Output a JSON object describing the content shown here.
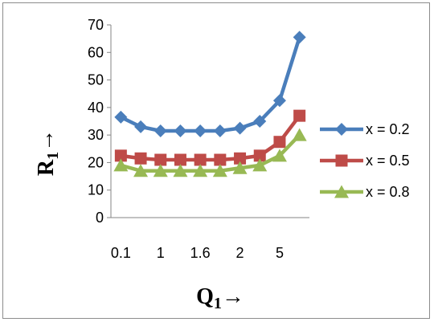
{
  "chart_data": {
    "type": "line",
    "xlabel": "Q",
    "xlabel_subscript": "1",
    "xlabel_arrow": "→",
    "ylabel": "R",
    "ylabel_subscript": "1",
    "ylabel_arrow": "→",
    "ylim": [
      0,
      70
    ],
    "yticks": [
      0,
      10,
      20,
      30,
      40,
      50,
      60,
      70
    ],
    "categories": [
      "0.1",
      "",
      "1",
      "",
      "1.6",
      "",
      "2",
      "",
      "5",
      ""
    ],
    "grid": false,
    "legend_position": "right",
    "series": [
      {
        "name": "x = 0.2",
        "marker": "diamond",
        "color": "#4a7ebb",
        "values": [
          36.5,
          33,
          31.5,
          31.5,
          31.5,
          31.5,
          32.5,
          35,
          42.5,
          65.5
        ]
      },
      {
        "name": "x = 0.5",
        "marker": "square",
        "color": "#be4b48",
        "values": [
          22.5,
          21.5,
          21,
          21,
          21,
          21,
          21.5,
          22.5,
          27.5,
          37
        ]
      },
      {
        "name": "x = 0.8",
        "marker": "triangle",
        "color": "#98b954",
        "values": [
          19,
          17,
          17,
          17,
          17,
          17,
          18,
          19,
          22.5,
          30
        ]
      }
    ]
  }
}
